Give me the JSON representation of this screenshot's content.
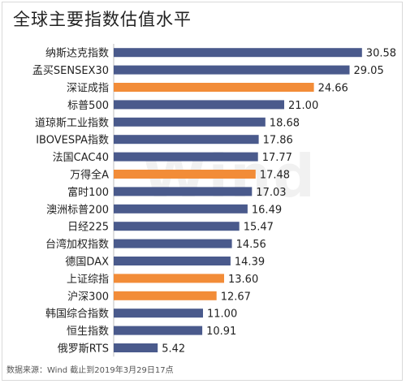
{
  "chart_data": {
    "type": "bar",
    "orientation": "horizontal",
    "title": "全球主要指数估值水平",
    "source": "数据来源：Wind 截止到2019年3月29日17点",
    "watermark": "Wind",
    "categories": [
      "纳斯达克指数",
      "孟买SENSEX30",
      "深证成指",
      "标普500",
      "道琼斯工业指数",
      "IBOVESPA指数",
      "法国CAC40",
      "万得全A",
      "富时100",
      "澳洲标普200",
      "日经225",
      "台湾加权指数",
      "德国DAX",
      "上证综指",
      "沪深300",
      "韩国综合指数",
      "恒生指数",
      "俄罗斯RTS"
    ],
    "values": [
      30.58,
      29.05,
      24.66,
      21.0,
      18.68,
      17.86,
      17.77,
      17.48,
      17.03,
      16.49,
      15.47,
      14.56,
      14.39,
      13.6,
      12.67,
      11.0,
      10.91,
      5.42
    ],
    "value_labels": [
      "30.58",
      "29.05",
      "24.66",
      "21.00",
      "18.68",
      "17.86",
      "17.77",
      "17.48",
      "17.03",
      "16.49",
      "15.47",
      "14.56",
      "14.39",
      "13.60",
      "12.67",
      "11.00",
      "10.91",
      "5.42"
    ],
    "highlighted": [
      false,
      false,
      true,
      false,
      false,
      false,
      false,
      true,
      false,
      false,
      false,
      false,
      false,
      true,
      true,
      false,
      false,
      false
    ],
    "xlim": [
      0,
      34
    ],
    "grid": false,
    "legend": "none",
    "colors": {
      "default": "#4a5a8c",
      "highlight": "#f28c38",
      "text": "#222222"
    }
  }
}
